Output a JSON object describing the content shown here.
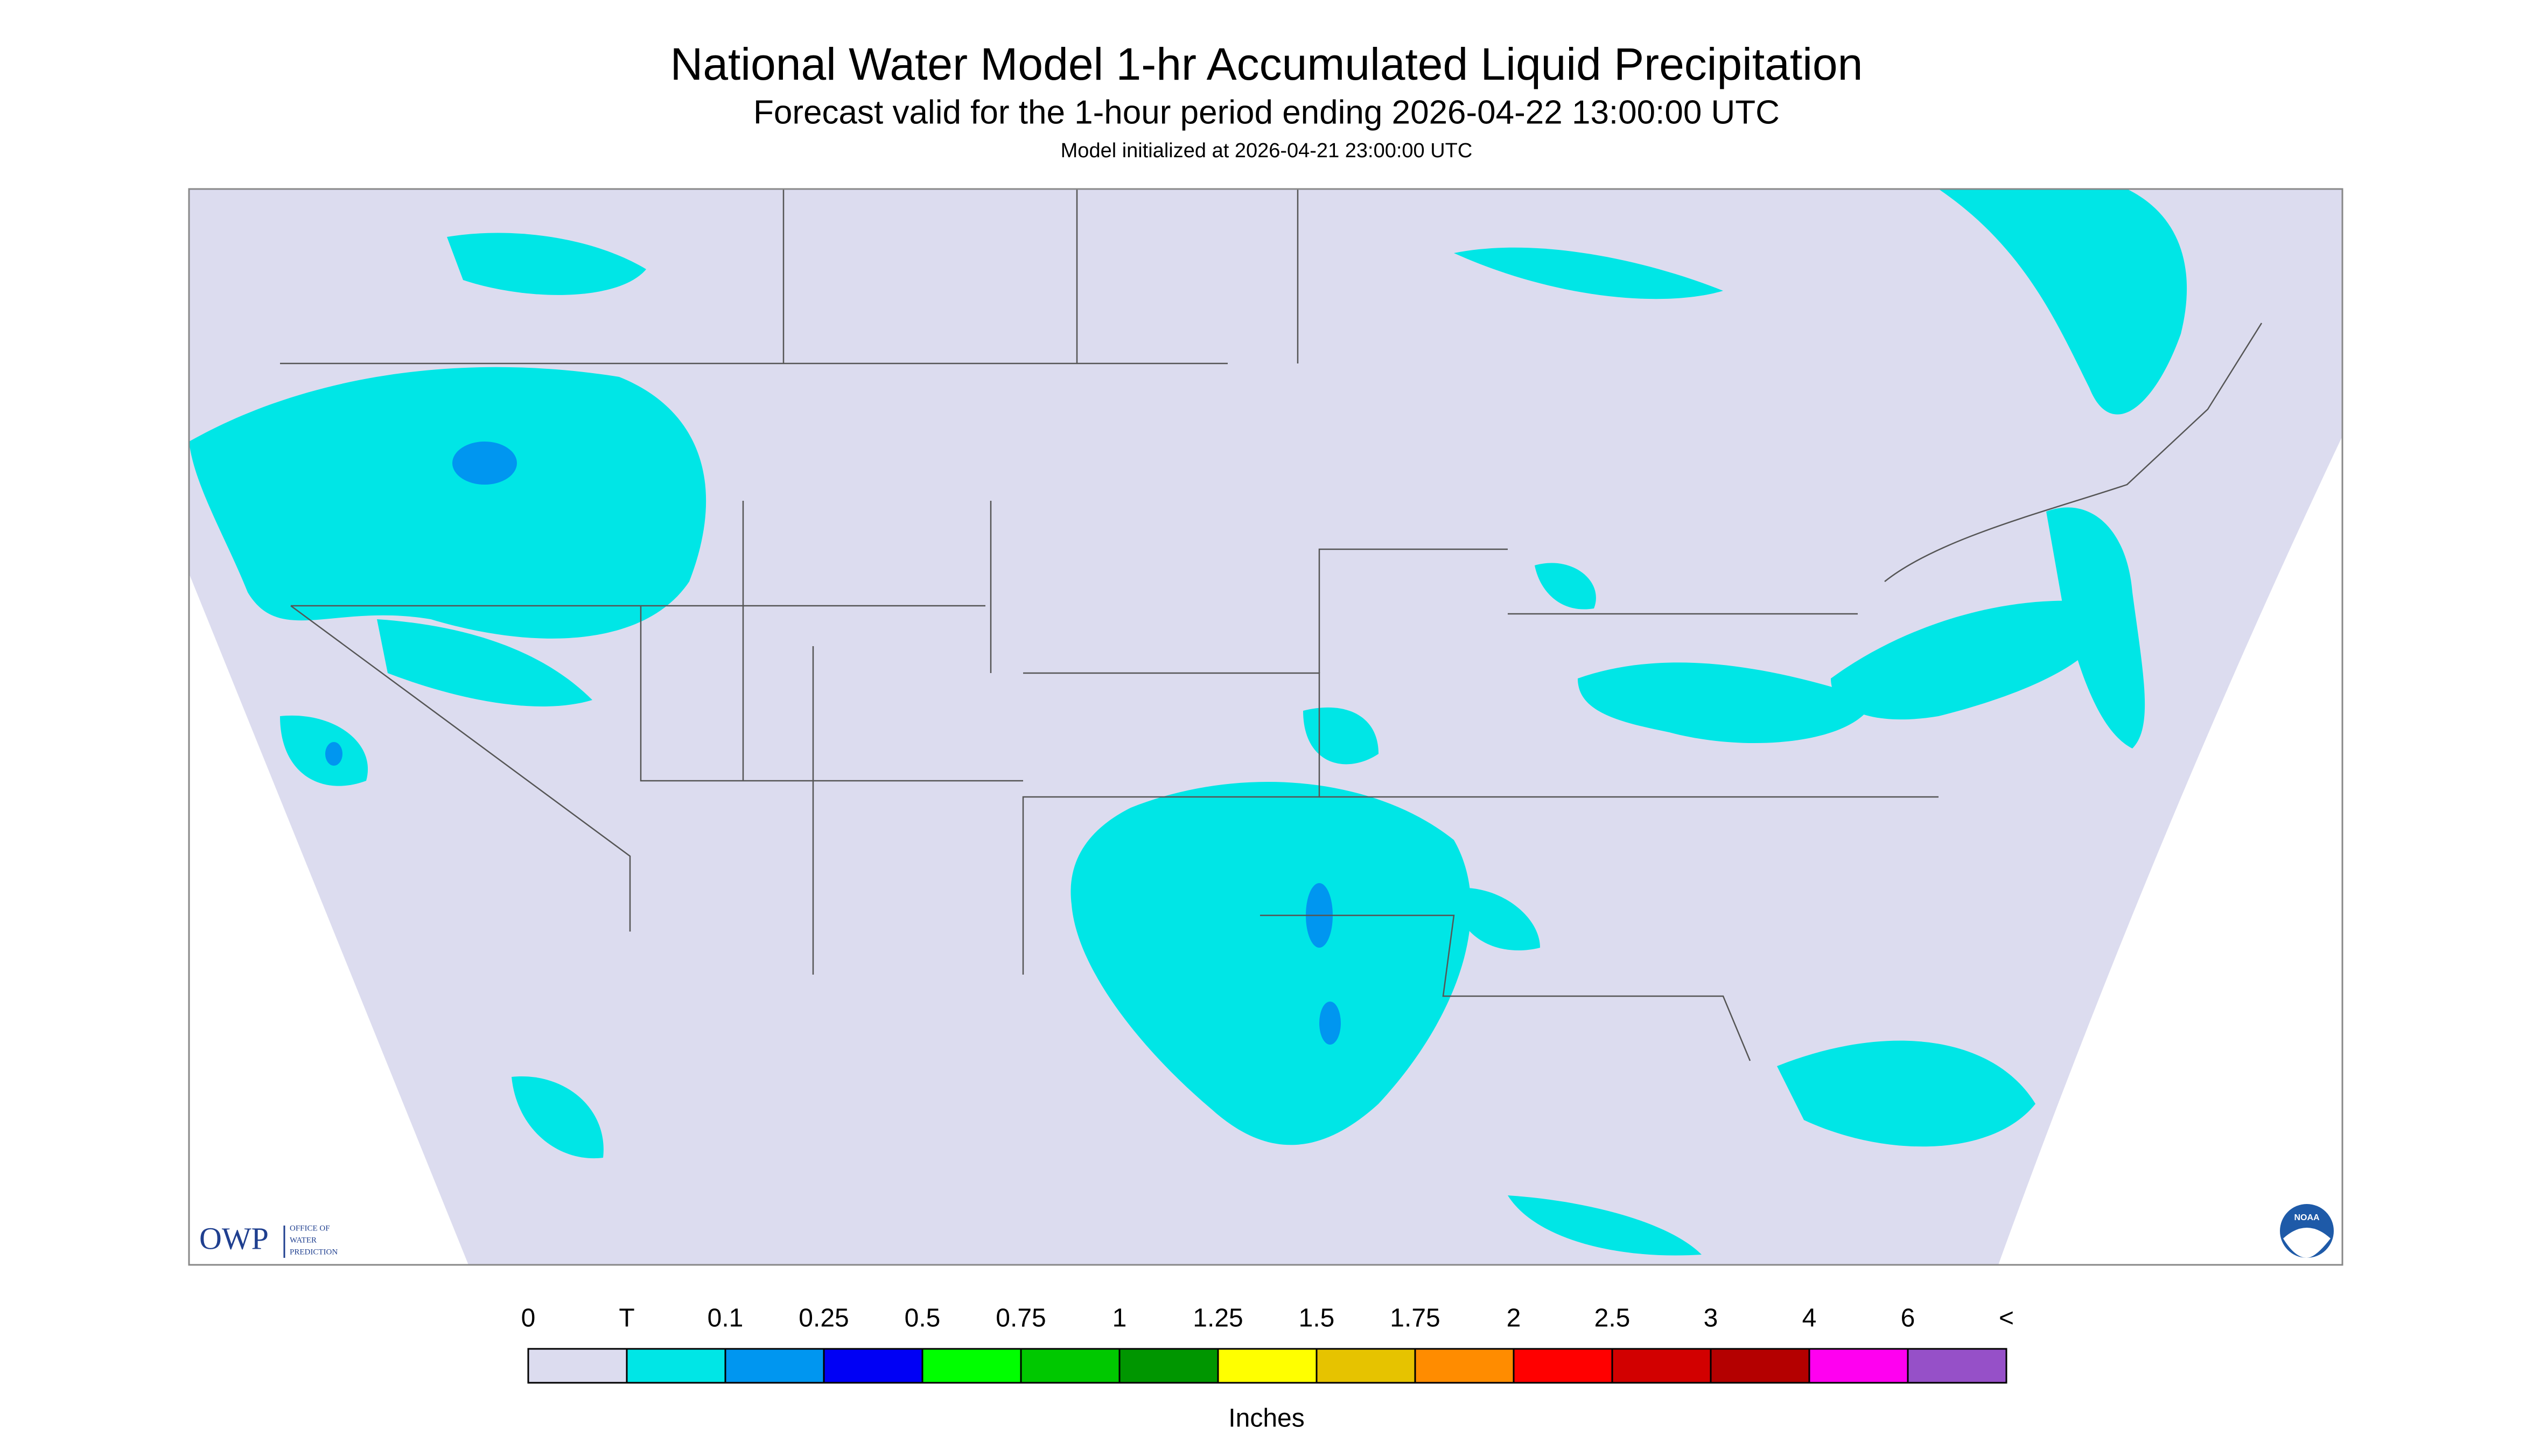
{
  "header": {
    "title": "National Water Model 1-hr Accumulated Liquid Precipitation",
    "subtitle": "Forecast valid for the 1-hour period ending 2026-04-22 13:00:00 UTC",
    "initialized": "Model initialized at 2026-04-21 23:00:00 UTC"
  },
  "legend": {
    "labels": [
      "0",
      "T",
      "0.1",
      "0.25",
      "0.5",
      "0.75",
      "1",
      "1.25",
      "1.5",
      "1.75",
      "2",
      "2.5",
      "3",
      "4",
      "6",
      "<"
    ],
    "colors": [
      "#dcdcef",
      "#00e6e6",
      "#0096f0",
      "#0000f5",
      "#00ff00",
      "#00c800",
      "#009600",
      "#ffff00",
      "#e6c300",
      "#ff8c00",
      "#ff0000",
      "#d20000",
      "#b40000",
      "#ff00f0",
      "#9650c8"
    ],
    "unit": "Inches"
  },
  "logos": {
    "owp": "OWP",
    "owp_text": [
      "OFFICE OF",
      "WATER",
      "PREDICTION"
    ],
    "noaa": "NOAA"
  }
}
